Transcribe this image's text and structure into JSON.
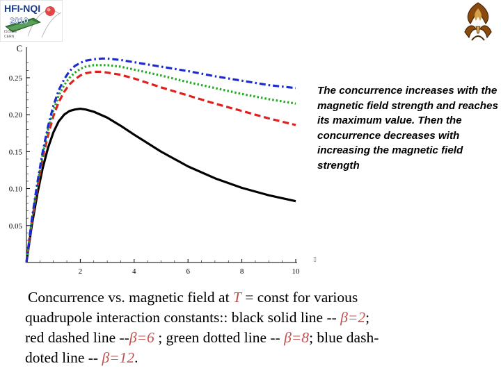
{
  "logo_left": {
    "line1": "HFI-NQI",
    "line2": "2010",
    "line3": "ISOLDE",
    "line4": "CERN"
  },
  "annotation": "The concurrence increases with the magnetic field strength and reaches its maximum value. Then the concurrence decreases with increasing the magnetic field strength",
  "caption": {
    "part1": "Concurrence vs. magnetic field at ",
    "T": "T",
    "part2": " = const for various quadrupole interaction constants:: black solid line -- ",
    "beta2": "β=2",
    "part3": "; red dashed line --",
    "beta6": "β=6",
    "part4": " ; green dotted line -- ",
    "beta8": "β=8",
    "part5": "; blue dash-doted line -- ",
    "beta12": "β=12",
    "part6": "."
  },
  "glyph": "▯",
  "chart_data": {
    "type": "line",
    "ylabel": "C",
    "xlabel": "",
    "xlim": [
      0,
      10
    ],
    "ylim": [
      0,
      0.28
    ],
    "xticks": [
      2,
      4,
      6,
      8,
      10
    ],
    "yticks": [
      0.05,
      0.1,
      0.15,
      0.2,
      0.25
    ],
    "ytick_labels": [
      "0.05",
      "0.10",
      "0.15",
      "0.20",
      "0.25"
    ],
    "xtick_labels": [
      "2",
      "4",
      "6",
      "8",
      "10"
    ],
    "series": [
      {
        "color": "#000000",
        "style": "solid",
        "x": [
          0,
          0.2,
          0.4,
          0.6,
          0.8,
          1.0,
          1.2,
          1.4,
          1.6,
          1.8,
          2.0,
          2.2,
          2.5,
          3.0,
          3.5,
          4.0,
          5.0,
          6.0,
          7.0,
          8.0,
          9.0,
          10.0
        ],
        "y": [
          0,
          0.05,
          0.092,
          0.127,
          0.155,
          0.176,
          0.191,
          0.2,
          0.205,
          0.207,
          0.208,
          0.207,
          0.204,
          0.196,
          0.185,
          0.173,
          0.15,
          0.13,
          0.114,
          0.101,
          0.091,
          0.083
        ]
      },
      {
        "color": "#e0201c",
        "style": "dashed",
        "x": [
          0,
          0.2,
          0.4,
          0.6,
          0.8,
          1.0,
          1.2,
          1.4,
          1.6,
          1.8,
          2.0,
          2.2,
          2.5,
          2.8,
          3.0,
          3.5,
          4.0,
          5.0,
          6.0,
          7.0,
          8.0,
          9.0,
          10.0
        ],
        "y": [
          0,
          0.055,
          0.1,
          0.14,
          0.172,
          0.198,
          0.217,
          0.231,
          0.241,
          0.248,
          0.253,
          0.256,
          0.258,
          0.258,
          0.257,
          0.254,
          0.249,
          0.237,
          0.226,
          0.215,
          0.205,
          0.195,
          0.186
        ]
      },
      {
        "color": "#1faa1f",
        "style": "dotted",
        "x": [
          0,
          0.2,
          0.4,
          0.6,
          0.8,
          1.0,
          1.2,
          1.4,
          1.6,
          1.8,
          2.0,
          2.2,
          2.5,
          2.8,
          3.0,
          3.5,
          4.0,
          5.0,
          6.0,
          7.0,
          8.0,
          9.0,
          10.0
        ],
        "y": [
          0,
          0.057,
          0.104,
          0.145,
          0.179,
          0.206,
          0.226,
          0.24,
          0.25,
          0.257,
          0.262,
          0.265,
          0.267,
          0.267,
          0.267,
          0.265,
          0.261,
          0.253,
          0.244,
          0.236,
          0.228,
          0.221,
          0.215
        ]
      },
      {
        "color": "#1a2bd0",
        "style": "dashdot",
        "x": [
          0,
          0.2,
          0.4,
          0.6,
          0.8,
          1.0,
          1.2,
          1.4,
          1.6,
          1.8,
          2.0,
          2.2,
          2.5,
          2.8,
          3.0,
          3.5,
          4.0,
          5.0,
          6.0,
          7.0,
          8.0,
          9.0,
          10.0
        ],
        "y": [
          0,
          0.058,
          0.107,
          0.149,
          0.184,
          0.212,
          0.233,
          0.248,
          0.259,
          0.266,
          0.27,
          0.273,
          0.275,
          0.276,
          0.276,
          0.274,
          0.271,
          0.265,
          0.259,
          0.252,
          0.246,
          0.24,
          0.236
        ]
      }
    ]
  }
}
